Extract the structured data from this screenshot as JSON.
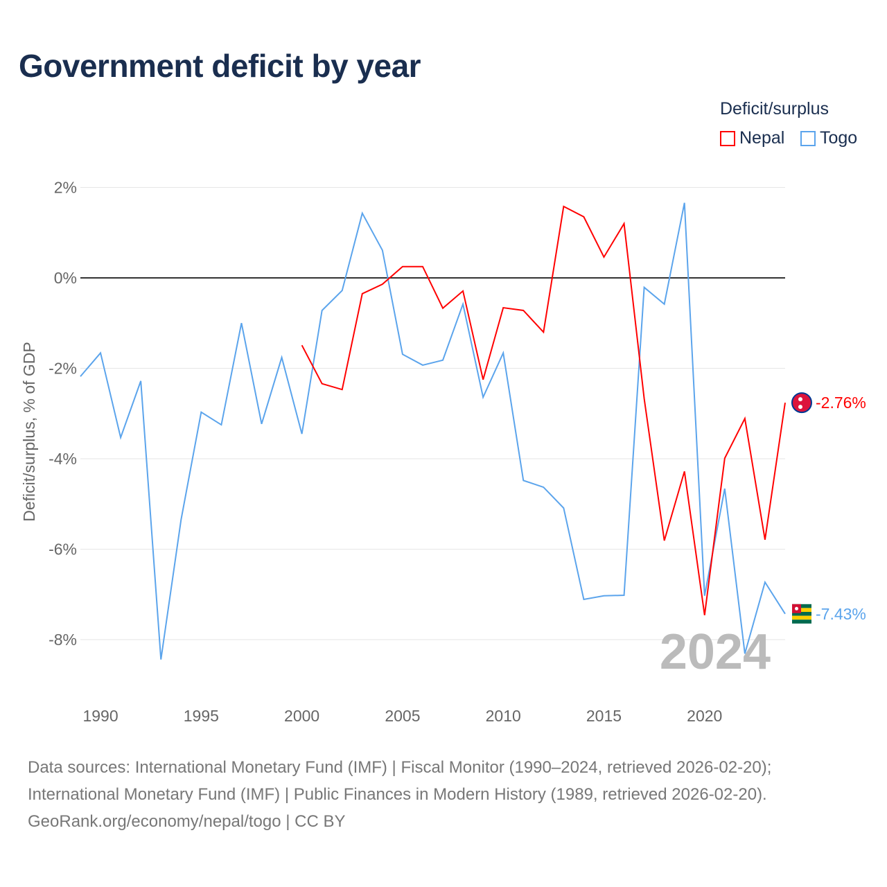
{
  "title": "Government deficit by year",
  "legend": {
    "title": "Deficit/surplus",
    "items": [
      {
        "name": "Nepal",
        "color": "#ff0000"
      },
      {
        "name": "Togo",
        "color": "#5ba4ec"
      }
    ]
  },
  "watermark_year": "2024",
  "source_lines": [
    "Data sources: International Monetary Fund (IMF) | Fiscal Monitor (1990–2024, retrieved 2026-02-20);",
    "International Monetary Fund (IMF) | Public Finances in Modern History (1989, retrieved 2026-02-20).",
    "GeoRank.org/economy/nepal/togo | CC BY"
  ],
  "chart_data": {
    "type": "line",
    "title": "Government deficit by year",
    "xlabel": "",
    "ylabel": "Deficit/surplus, % of GDP",
    "xlim": [
      1989,
      2024
    ],
    "ylim": [
      -9.3,
      2
    ],
    "x_ticks": [
      1990,
      1995,
      2000,
      2005,
      2010,
      2015,
      2020
    ],
    "y_ticks": [
      2,
      0,
      -2,
      -4,
      -6,
      -8
    ],
    "y_tick_labels": [
      "2%",
      "0%",
      "-2%",
      "-4%",
      "-6%",
      "-8%"
    ],
    "grid": true,
    "legend_position": "top-right",
    "series": [
      {
        "name": "Nepal",
        "color": "#ff0000",
        "end_label": "-2.76%",
        "x": [
          2000,
          2001,
          2002,
          2003,
          2004,
          2005,
          2006,
          2007,
          2008,
          2009,
          2010,
          2011,
          2012,
          2013,
          2014,
          2015,
          2016,
          2017,
          2018,
          2019,
          2020,
          2021,
          2022,
          2023,
          2024
        ],
        "values": [
          -1.49,
          -2.34,
          -2.47,
          -0.35,
          -0.14,
          0.25,
          0.25,
          -0.67,
          -0.29,
          -2.25,
          -0.66,
          -0.72,
          -1.2,
          1.58,
          1.35,
          0.46,
          1.2,
          -2.67,
          -5.81,
          -4.28,
          -7.46,
          -3.99,
          -3.11,
          -5.79,
          -2.76
        ]
      },
      {
        "name": "Togo",
        "color": "#5ba4ec",
        "end_label": "-7.43%",
        "x": [
          1989,
          1990,
          1991,
          1992,
          1993,
          1994,
          1995,
          1996,
          1997,
          1998,
          1999,
          2000,
          2001,
          2002,
          2003,
          2004,
          2005,
          2006,
          2007,
          2008,
          2009,
          2010,
          2011,
          2012,
          2013,
          2014,
          2015,
          2016,
          2017,
          2018,
          2019,
          2020,
          2021,
          2022,
          2023,
          2024
        ],
        "values": [
          -2.18,
          -1.66,
          -3.53,
          -2.28,
          -8.44,
          -5.35,
          -2.97,
          -3.25,
          -1.0,
          -3.23,
          -1.76,
          -3.45,
          -0.72,
          -0.28,
          1.43,
          0.61,
          -1.69,
          -1.93,
          -1.82,
          -0.58,
          -2.64,
          -1.66,
          -4.48,
          -4.63,
          -5.09,
          -7.11,
          -7.03,
          -7.02,
          -0.21,
          -0.58,
          1.66,
          -7.03,
          -4.66,
          -8.31,
          -6.73,
          -7.43
        ]
      }
    ]
  }
}
